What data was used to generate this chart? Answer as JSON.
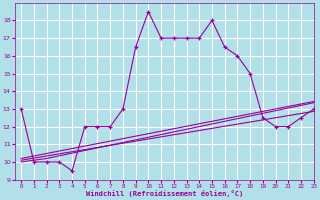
{
  "xlabel": "Windchill (Refroidissement éolien,°C)",
  "background_color": "#b2e0e8",
  "grid_color": "#ffffff",
  "line_color": "#990099",
  "x_data": [
    0,
    1,
    2,
    3,
    4,
    5,
    6,
    7,
    8,
    9,
    10,
    11,
    12,
    13,
    14,
    15,
    16,
    17,
    18,
    19,
    20,
    21,
    22,
    23
  ],
  "main_line": [
    13,
    10,
    10,
    10,
    9.5,
    12,
    12,
    12,
    13,
    16.5,
    18.5,
    17,
    17,
    17,
    17,
    18,
    16.5,
    16,
    15,
    12.5,
    12,
    12,
    12.5,
    13
  ],
  "line2": [
    10.0,
    10.1,
    10.2,
    10.35,
    10.5,
    10.65,
    10.8,
    10.95,
    11.1,
    11.25,
    11.4,
    11.55,
    11.7,
    11.85,
    12.0,
    12.15,
    12.3,
    12.45,
    12.6,
    12.75,
    12.9,
    13.05,
    13.2,
    13.35
  ],
  "line3": [
    10.1,
    10.22,
    10.34,
    10.46,
    10.58,
    10.7,
    10.82,
    10.94,
    11.06,
    11.18,
    11.3,
    11.42,
    11.54,
    11.66,
    11.78,
    11.9,
    12.02,
    12.14,
    12.26,
    12.38,
    12.5,
    12.62,
    12.74,
    12.86
  ],
  "line4": [
    10.2,
    10.34,
    10.48,
    10.62,
    10.76,
    10.9,
    11.04,
    11.18,
    11.32,
    11.46,
    11.6,
    11.74,
    11.88,
    12.02,
    12.16,
    12.3,
    12.44,
    12.58,
    12.72,
    12.86,
    13.0,
    13.14,
    13.28,
    13.42
  ],
  "ylim": [
    9,
    19
  ],
  "xlim": [
    -0.5,
    23
  ],
  "yticks": [
    9,
    10,
    11,
    12,
    13,
    14,
    15,
    16,
    17,
    18
  ],
  "xticks": [
    0,
    1,
    2,
    3,
    4,
    5,
    6,
    7,
    8,
    9,
    10,
    11,
    12,
    13,
    14,
    15,
    16,
    17,
    18,
    19,
    20,
    21,
    22,
    23
  ]
}
